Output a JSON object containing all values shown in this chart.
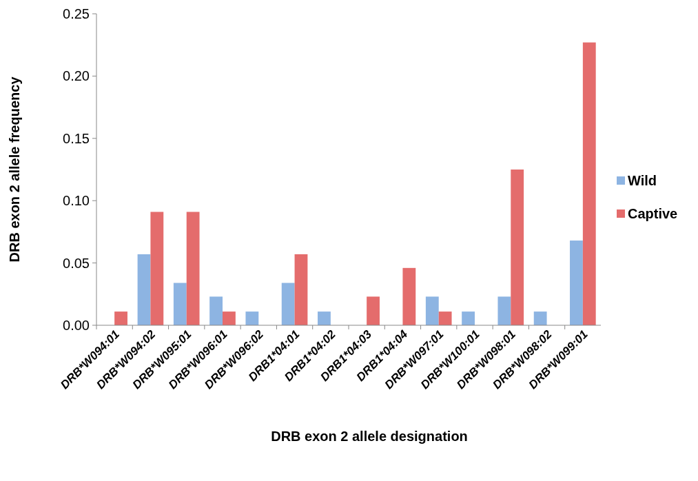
{
  "chart_data": {
    "type": "bar",
    "xlabel": "DRB exon 2 allele designation",
    "ylabel": "DRB exon 2 allele frequency",
    "categories": [
      "DRB*W094:01",
      "DRB*W094:02",
      "DRB*W095:01",
      "DRB*W096:01",
      "DRB*W096:02",
      "DRB1*04:01",
      "DRB1*04:02",
      "DRB1*04:03",
      "DRB1*04:04",
      "DRB*W097:01",
      "DRB*W100:01",
      "DRB*W098:01",
      "DRB*W098:02",
      "DRB*W099:01"
    ],
    "series": [
      {
        "name": "Wild",
        "color": "#8db4e2",
        "values": [
          0,
          0.057,
          0.034,
          0.023,
          0.011,
          0.034,
          0.011,
          0,
          0,
          0.023,
          0.011,
          0.023,
          0.011,
          0.068
        ]
      },
      {
        "name": "Captive",
        "color": "#e46c6c",
        "values": [
          0.011,
          0.091,
          0.091,
          0.011,
          0,
          0.057,
          0,
          0.023,
          0.046,
          0.011,
          0,
          0.125,
          0,
          0.227
        ]
      }
    ],
    "ylim": [
      0,
      0.25
    ],
    "yticks": [
      {
        "value": 0,
        "label": "0.00"
      },
      {
        "value": 0.05,
        "label": "0.05"
      },
      {
        "value": 0.1,
        "label": "0.10"
      },
      {
        "value": 0.15,
        "label": "0.15"
      },
      {
        "value": 0.2,
        "label": "0.20"
      },
      {
        "value": 0.25,
        "label": "0.25"
      }
    ],
    "grid": false,
    "legend": "right"
  }
}
